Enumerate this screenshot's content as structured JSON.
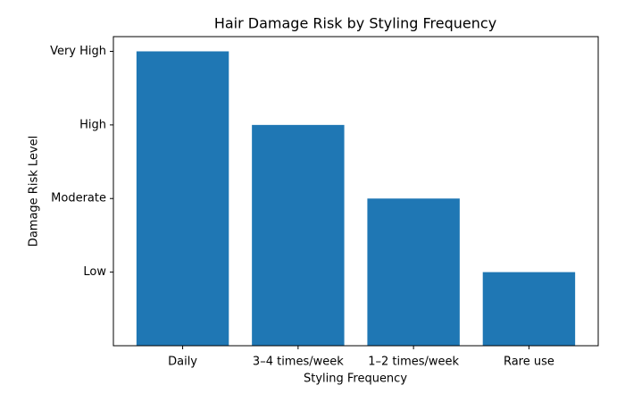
{
  "chart_data": {
    "type": "bar",
    "title": "Hair Damage Risk by Styling Frequency",
    "x_label": "Styling Frequency",
    "y_label": "Damage Risk Level",
    "categories": [
      "Daily",
      "3–4 times/week",
      "1–2 times/week",
      "Rare use"
    ],
    "values": [
      4,
      3,
      2,
      1
    ],
    "color": "#1f77b4",
    "ylim": [
      0,
      4.2
    ],
    "yticks": [
      {
        "value": 1,
        "label": "Low"
      },
      {
        "value": 2,
        "label": "Moderate"
      },
      {
        "value": 3,
        "label": "High"
      },
      {
        "value": 4,
        "label": "Very High"
      }
    ],
    "grid": false
  }
}
